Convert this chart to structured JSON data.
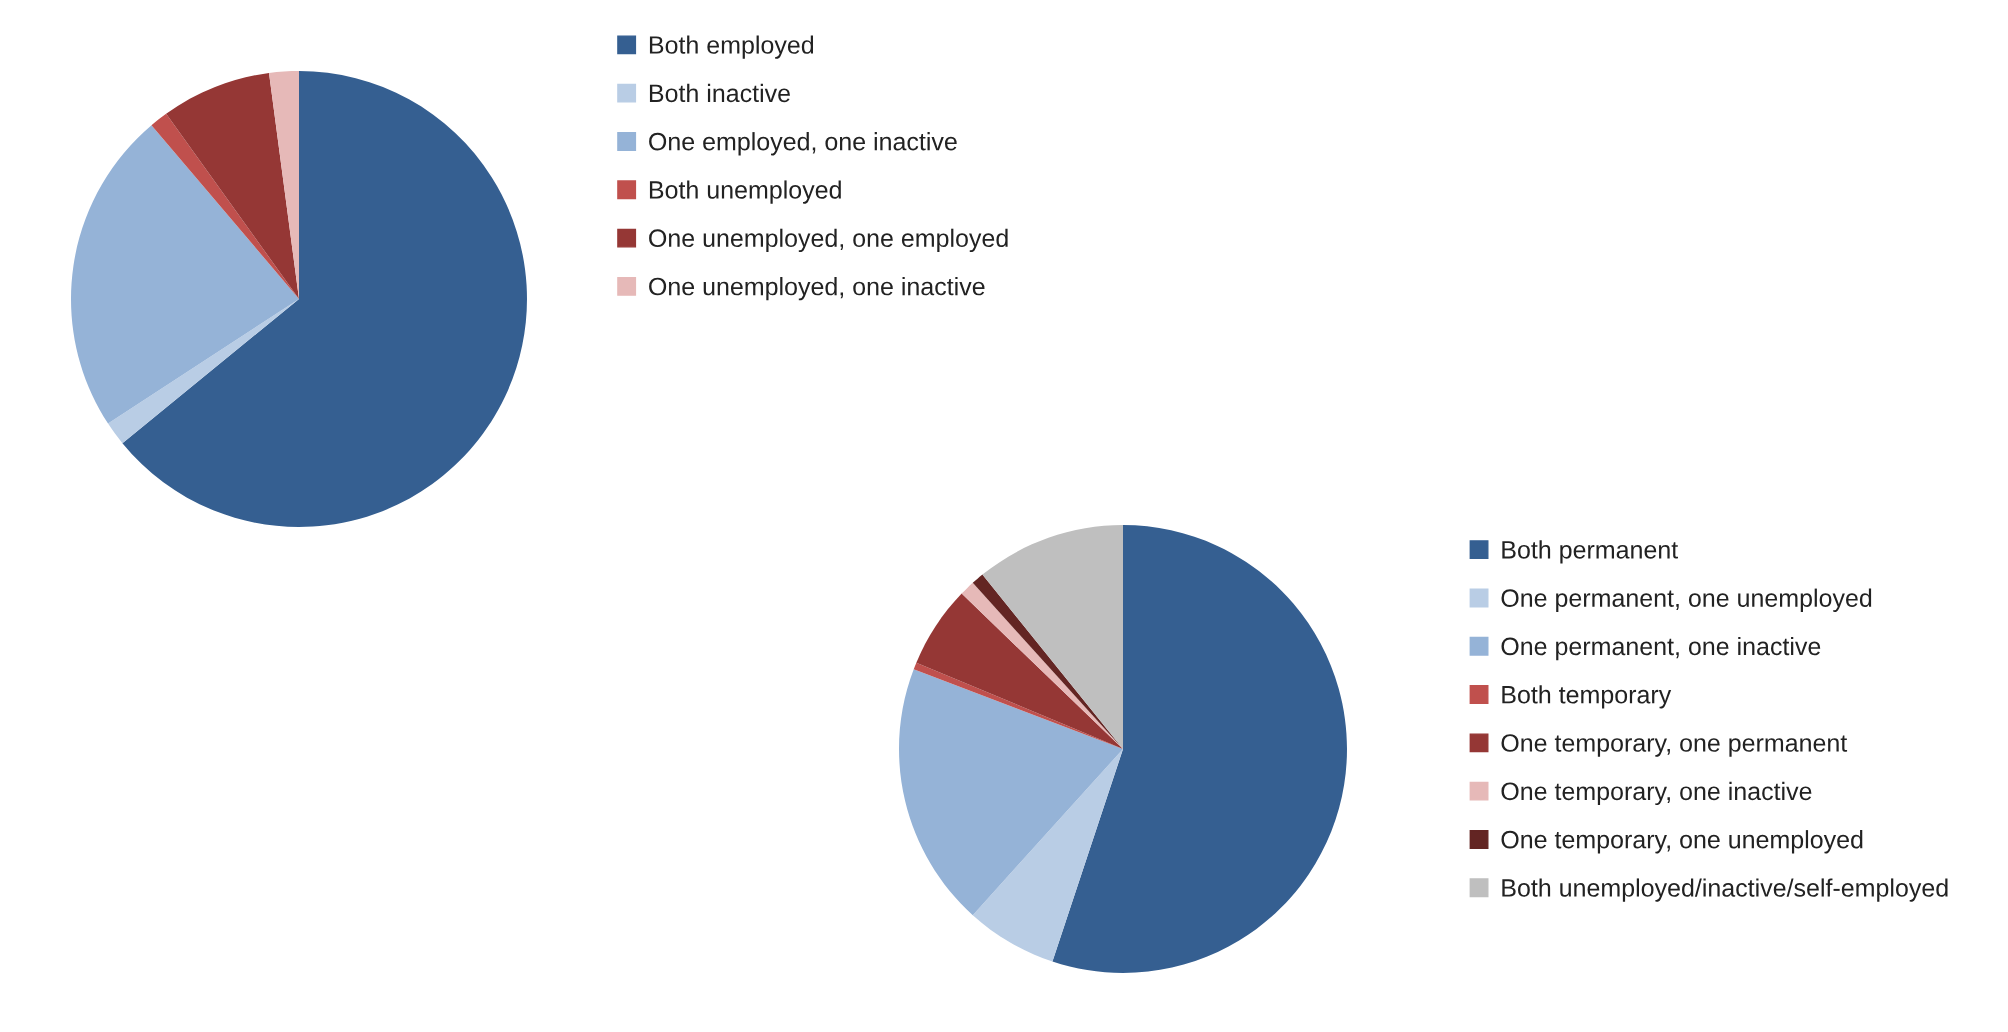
{
  "chart_data": [
    {
      "type": "pie",
      "categories": [
        "Both employed",
        "Both inactive",
        "One employed, one inactive",
        "Both unemployed",
        "One unemployed, one employed",
        "One unemployed, one inactive"
      ],
      "values": [
        64.1,
        1.7,
        23,
        1.3,
        7.8,
        2.1
      ],
      "colors": [
        "#355f91",
        "#b9cde5",
        "#95b3d7",
        "#c0504d",
        "#953735",
        "#e6b9b8"
      ],
      "legend": "right"
    },
    {
      "type": "pie",
      "categories": [
        "Both permanent",
        "One permanent, one unemployed",
        "One permanent, one inactive",
        "Both temporary",
        "One temporary, one permanent",
        "One temporary, one inactive",
        "One temporary, one unemployed",
        "Both unemployed/inactive/self-employed"
      ],
      "values": [
        55.1,
        6.6,
        19.1,
        0.5,
        5.9,
        1.1,
        0.9,
        10.8
      ],
      "colors": [
        "#355f91",
        "#b9cde5",
        "#95b3d7",
        "#c0504d",
        "#953735",
        "#e6b9b8",
        "#632523",
        "#bfbfbf"
      ],
      "legend": "right"
    }
  ]
}
